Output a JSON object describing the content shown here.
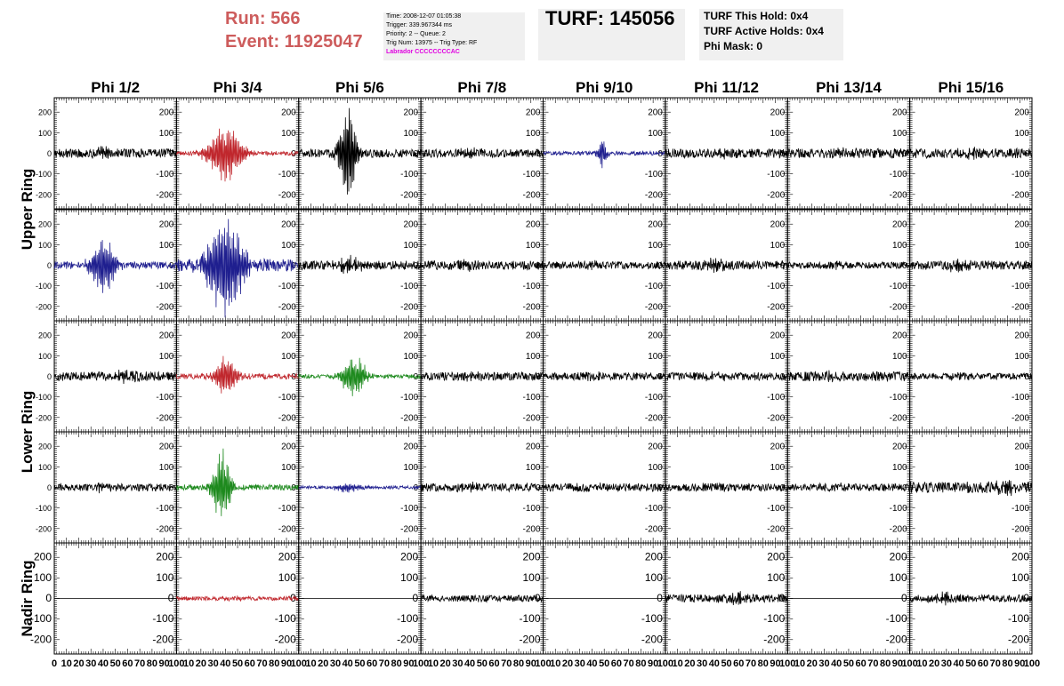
{
  "header": {
    "run": "Run:    566",
    "event": "Event: 11925047"
  },
  "info": {
    "time": "Time: 2008-12-07 01:05:38",
    "trigger": "Trigger: 339.967344 ms",
    "priority": "Priority: 2 -- Queue: 2",
    "trig_num": "Trig Num: 13975 -- Trig Type: RF",
    "labrador": "Labrador CCCCCCCCAC"
  },
  "turf": {
    "count": "TURF: 145056",
    "this_hold": "TURF This Hold: 0x4",
    "active_holds": "TURF Active Holds: 0x4",
    "phi_mask": "Phi Mask: 0"
  },
  "colors": {
    "black": "#000000",
    "red": "#c0272d",
    "blue": "#1f1f8f",
    "green": "#1e8a1e",
    "header_red": "#cd5c5c",
    "labrador": "#e000e0"
  },
  "chart_data": {
    "type": "line",
    "description_scope": "8x5 grid of antenna waveform panels",
    "columns": [
      "Phi 1/2",
      "Phi 3/4",
      "Phi 5/6",
      "Phi 7/8",
      "Phi 9/10",
      "Phi 11/12",
      "Phi 13/14",
      "Phi 15/16"
    ],
    "rows": [
      "Upper Ring",
      "Upper Ring",
      "Lower Ring",
      "Lower Ring",
      "Nadir Ring"
    ],
    "row_labels": [
      {
        "text": "Upper Ring",
        "rows": [
          0,
          1
        ]
      },
      {
        "text": "Lower Ring",
        "rows": [
          2,
          3
        ]
      },
      {
        "text": "Nadir Ring",
        "rows": [
          4
        ]
      }
    ],
    "xlim": [
      0,
      100
    ],
    "ylim": [
      -270,
      270
    ],
    "x_ticks": [
      0,
      10,
      20,
      30,
      40,
      50,
      60,
      70,
      80,
      90,
      100
    ],
    "y_ticks": [
      -200,
      -100,
      0,
      100,
      200
    ],
    "x_tick_labels": [
      "0",
      "10",
      "20",
      "30",
      "40",
      "50",
      "60",
      "70",
      "80",
      "90",
      "100"
    ],
    "y_tick_labels": [
      "-200",
      "-100",
      "0",
      "100",
      "200"
    ],
    "panels": [
      [
        {
          "color": "black",
          "noise": 22,
          "burst_center": 40,
          "burst_amp": 25,
          "burst_width": 8
        },
        {
          "color": "red",
          "noise": 10,
          "burst_center": 40,
          "burst_amp": 140,
          "burst_width": 14
        },
        {
          "color": "black",
          "noise": 20,
          "burst_center": 40,
          "burst_amp": 230,
          "burst_width": 7
        },
        {
          "color": "black",
          "noise": 20,
          "burst_center": 40,
          "burst_amp": 20,
          "burst_width": 10
        },
        {
          "color": "blue",
          "noise": 10,
          "burst_center": 48,
          "burst_amp": 70,
          "burst_width": 4
        },
        {
          "color": "black",
          "noise": 22,
          "burst_center": 50,
          "burst_amp": 10,
          "burst_width": 10
        },
        {
          "color": "black",
          "noise": 24,
          "burst_center": 50,
          "burst_amp": 10,
          "burst_width": 10
        },
        {
          "color": "black",
          "noise": 24,
          "burst_center": 50,
          "burst_amp": 15,
          "burst_width": 10
        }
      ],
      [
        {
          "color": "blue",
          "noise": 18,
          "burst_center": 40,
          "burst_amp": 140,
          "burst_width": 10
        },
        {
          "color": "blue",
          "noise": 30,
          "burst_center": 40,
          "burst_amp": 250,
          "burst_width": 15
        },
        {
          "color": "black",
          "noise": 22,
          "burst_center": 40,
          "burst_amp": 35,
          "burst_width": 10
        },
        {
          "color": "black",
          "noise": 22,
          "burst_center": 40,
          "burst_amp": 15,
          "burst_width": 10
        },
        {
          "color": "black",
          "noise": 18,
          "burst_center": 40,
          "burst_amp": 10,
          "burst_width": 10
        },
        {
          "color": "black",
          "noise": 22,
          "burst_center": 40,
          "burst_amp": 30,
          "burst_width": 8
        },
        {
          "color": "black",
          "noise": 16,
          "burst_center": 40,
          "burst_amp": 10,
          "burst_width": 10
        },
        {
          "color": "black",
          "noise": 22,
          "burst_center": 40,
          "burst_amp": 20,
          "burst_width": 10
        }
      ],
      [
        {
          "color": "black",
          "noise": 22,
          "burst_center": 60,
          "burst_amp": 25,
          "burst_width": 10
        },
        {
          "color": "red",
          "noise": 14,
          "burst_center": 40,
          "burst_amp": 100,
          "burst_width": 9
        },
        {
          "color": "green",
          "noise": 10,
          "burst_center": 45,
          "burst_amp": 100,
          "burst_width": 10
        },
        {
          "color": "black",
          "noise": 20,
          "burst_center": 40,
          "burst_amp": 12,
          "burst_width": 10
        },
        {
          "color": "black",
          "noise": 18,
          "burst_center": 40,
          "burst_amp": 10,
          "burst_width": 10
        },
        {
          "color": "black",
          "noise": 20,
          "burst_center": 40,
          "burst_amp": 10,
          "burst_width": 10
        },
        {
          "color": "black",
          "noise": 24,
          "burst_center": 40,
          "burst_amp": 15,
          "burst_width": 10
        },
        {
          "color": "black",
          "noise": 16,
          "burst_center": 40,
          "burst_amp": 10,
          "burst_width": 10
        }
      ],
      [
        {
          "color": "black",
          "noise": 18,
          "burst_center": 40,
          "burst_amp": 15,
          "burst_width": 10
        },
        {
          "color": "green",
          "noise": 14,
          "burst_center": 37,
          "burst_amp": 170,
          "burst_width": 8
        },
        {
          "color": "blue",
          "noise": 8,
          "burst_center": 40,
          "burst_amp": 25,
          "burst_width": 10
        },
        {
          "color": "black",
          "noise": 20,
          "burst_center": 40,
          "burst_amp": 10,
          "burst_width": 10
        },
        {
          "color": "black",
          "noise": 20,
          "burst_center": 40,
          "burst_amp": 10,
          "burst_width": 10
        },
        {
          "color": "black",
          "noise": 18,
          "burst_center": 40,
          "burst_amp": 10,
          "burst_width": 10
        },
        {
          "color": "black",
          "noise": 18,
          "burst_center": 40,
          "burst_amp": 10,
          "burst_width": 10
        },
        {
          "color": "black",
          "noise": 28,
          "burst_center": 80,
          "burst_amp": 25,
          "burst_width": 10
        }
      ],
      [
        {
          "color": "black",
          "noise": 0,
          "burst_center": 50,
          "burst_amp": 0,
          "burst_width": 10
        },
        {
          "color": "red",
          "noise": 10,
          "burst_center": 50,
          "burst_amp": 5,
          "burst_width": 10
        },
        {
          "color": "black",
          "noise": 0,
          "burst_center": 50,
          "burst_amp": 0,
          "burst_width": 10
        },
        {
          "color": "black",
          "noise": 16,
          "burst_center": 50,
          "burst_amp": 5,
          "burst_width": 10
        },
        {
          "color": "black",
          "noise": 0,
          "burst_center": 50,
          "burst_amp": 0,
          "burst_width": 10
        },
        {
          "color": "black",
          "noise": 20,
          "burst_center": 60,
          "burst_amp": 30,
          "burst_width": 8
        },
        {
          "color": "black",
          "noise": 0,
          "burst_center": 50,
          "burst_amp": 0,
          "burst_width": 10
        },
        {
          "color": "black",
          "noise": 18,
          "burst_center": 30,
          "burst_amp": 20,
          "burst_width": 10
        }
      ]
    ]
  }
}
